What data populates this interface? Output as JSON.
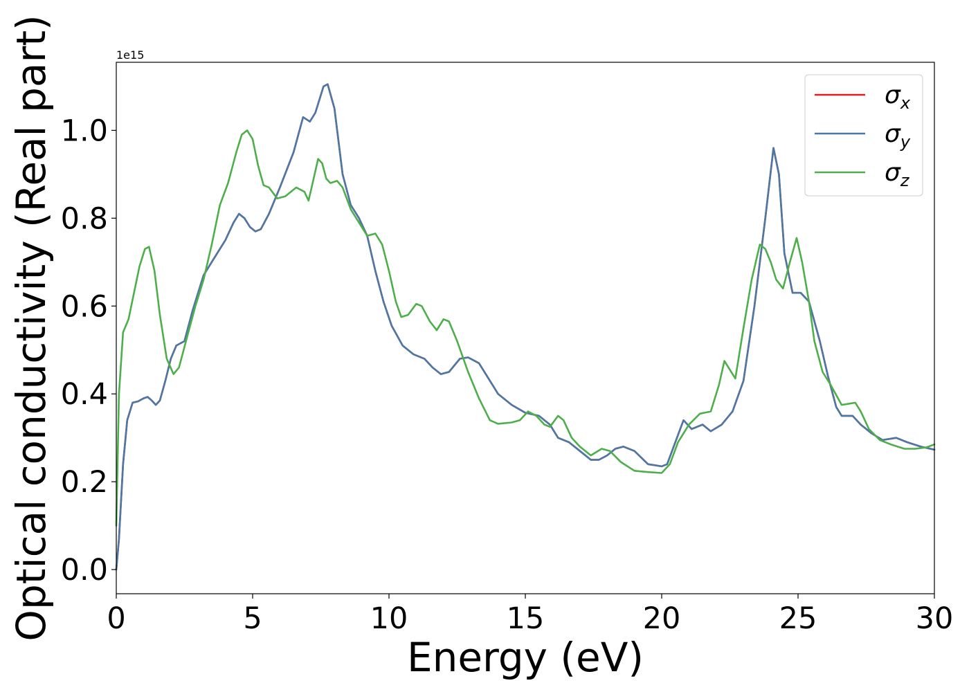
{
  "chart_data": {
    "type": "line",
    "xlabel": "Energy (eV)",
    "ylabel": "Optical conductivity (Real part)",
    "offset_text": "1e15",
    "xlim": [
      0,
      30
    ],
    "ylim": [
      -0.055,
      1.155
    ],
    "x_ticks": [
      "0",
      "5",
      "10",
      "15",
      "20",
      "25",
      "30"
    ],
    "y_ticks": [
      "0.0",
      "0.2",
      "0.4",
      "0.6",
      "0.8",
      "1.0"
    ],
    "legend_position": "top-right",
    "grid": false,
    "series": [
      {
        "name": "σx",
        "legend_base": "σ",
        "legend_sub": "x",
        "color": "#e41a1c",
        "points": [
          [
            0,
            0
          ],
          [
            0.1,
            0.07
          ],
          [
            0.25,
            0.24
          ],
          [
            0.4,
            0.34
          ],
          [
            0.6,
            0.38
          ],
          [
            0.8,
            0.383
          ],
          [
            1.0,
            0.39
          ],
          [
            1.15,
            0.393
          ],
          [
            1.3,
            0.385
          ],
          [
            1.45,
            0.375
          ],
          [
            1.6,
            0.385
          ],
          [
            1.8,
            0.43
          ],
          [
            2.0,
            0.48
          ],
          [
            2.2,
            0.51
          ],
          [
            2.5,
            0.52
          ],
          [
            2.8,
            0.59
          ],
          [
            3.2,
            0.67
          ],
          [
            3.6,
            0.71
          ],
          [
            4.0,
            0.75
          ],
          [
            4.3,
            0.79
          ],
          [
            4.5,
            0.81
          ],
          [
            4.7,
            0.8
          ],
          [
            4.9,
            0.78
          ],
          [
            5.1,
            0.77
          ],
          [
            5.3,
            0.775
          ],
          [
            5.6,
            0.81
          ],
          [
            6.0,
            0.87
          ],
          [
            6.5,
            0.95
          ],
          [
            6.85,
            1.03
          ],
          [
            7.1,
            1.02
          ],
          [
            7.3,
            1.04
          ],
          [
            7.6,
            1.1
          ],
          [
            7.75,
            1.105
          ],
          [
            8.0,
            1.05
          ],
          [
            8.3,
            0.9
          ],
          [
            8.6,
            0.83
          ],
          [
            8.9,
            0.8
          ],
          [
            9.2,
            0.76
          ],
          [
            9.5,
            0.68
          ],
          [
            9.8,
            0.61
          ],
          [
            10.1,
            0.555
          ],
          [
            10.5,
            0.51
          ],
          [
            10.9,
            0.49
          ],
          [
            11.3,
            0.48
          ],
          [
            11.6,
            0.46
          ],
          [
            11.9,
            0.445
          ],
          [
            12.2,
            0.45
          ],
          [
            12.6,
            0.48
          ],
          [
            12.9,
            0.483
          ],
          [
            13.3,
            0.47
          ],
          [
            13.7,
            0.43
          ],
          [
            14.0,
            0.4
          ],
          [
            14.5,
            0.375
          ],
          [
            15.0,
            0.357
          ],
          [
            15.5,
            0.35
          ],
          [
            15.9,
            0.33
          ],
          [
            16.2,
            0.3
          ],
          [
            16.6,
            0.29
          ],
          [
            17.0,
            0.27
          ],
          [
            17.4,
            0.25
          ],
          [
            17.7,
            0.25
          ],
          [
            18.0,
            0.26
          ],
          [
            18.3,
            0.275
          ],
          [
            18.6,
            0.28
          ],
          [
            19.0,
            0.27
          ],
          [
            19.5,
            0.24
          ],
          [
            20.0,
            0.235
          ],
          [
            20.2,
            0.24
          ],
          [
            20.5,
            0.29
          ],
          [
            20.8,
            0.34
          ],
          [
            21.1,
            0.32
          ],
          [
            21.5,
            0.33
          ],
          [
            21.8,
            0.315
          ],
          [
            22.2,
            0.33
          ],
          [
            22.6,
            0.36
          ],
          [
            23.0,
            0.43
          ],
          [
            23.4,
            0.6
          ],
          [
            23.8,
            0.8
          ],
          [
            24.1,
            0.96
          ],
          [
            24.3,
            0.9
          ],
          [
            24.5,
            0.72
          ],
          [
            24.8,
            0.63
          ],
          [
            25.1,
            0.63
          ],
          [
            25.4,
            0.61
          ],
          [
            25.8,
            0.52
          ],
          [
            26.1,
            0.44
          ],
          [
            26.4,
            0.37
          ],
          [
            26.6,
            0.35
          ],
          [
            27.0,
            0.35
          ],
          [
            27.3,
            0.33
          ],
          [
            27.7,
            0.31
          ],
          [
            28.1,
            0.295
          ],
          [
            28.6,
            0.3
          ],
          [
            29.0,
            0.29
          ],
          [
            29.5,
            0.28
          ],
          [
            30.0,
            0.273
          ]
        ]
      },
      {
        "name": "σy",
        "legend_base": "σ",
        "legend_sub": "y",
        "color": "#4a79a8",
        "points": [
          [
            0,
            0
          ],
          [
            0.1,
            0.07
          ],
          [
            0.25,
            0.24
          ],
          [
            0.4,
            0.34
          ],
          [
            0.6,
            0.38
          ],
          [
            0.8,
            0.383
          ],
          [
            1.0,
            0.39
          ],
          [
            1.15,
            0.393
          ],
          [
            1.3,
            0.385
          ],
          [
            1.45,
            0.375
          ],
          [
            1.6,
            0.385
          ],
          [
            1.8,
            0.43
          ],
          [
            2.0,
            0.48
          ],
          [
            2.2,
            0.51
          ],
          [
            2.5,
            0.52
          ],
          [
            2.8,
            0.59
          ],
          [
            3.2,
            0.67
          ],
          [
            3.6,
            0.71
          ],
          [
            4.0,
            0.75
          ],
          [
            4.3,
            0.79
          ],
          [
            4.5,
            0.81
          ],
          [
            4.7,
            0.8
          ],
          [
            4.9,
            0.78
          ],
          [
            5.1,
            0.77
          ],
          [
            5.3,
            0.775
          ],
          [
            5.6,
            0.81
          ],
          [
            6.0,
            0.87
          ],
          [
            6.5,
            0.95
          ],
          [
            6.85,
            1.03
          ],
          [
            7.1,
            1.02
          ],
          [
            7.3,
            1.04
          ],
          [
            7.6,
            1.1
          ],
          [
            7.75,
            1.105
          ],
          [
            8.0,
            1.05
          ],
          [
            8.3,
            0.9
          ],
          [
            8.6,
            0.83
          ],
          [
            8.9,
            0.8
          ],
          [
            9.2,
            0.76
          ],
          [
            9.5,
            0.68
          ],
          [
            9.8,
            0.61
          ],
          [
            10.1,
            0.555
          ],
          [
            10.5,
            0.51
          ],
          [
            10.9,
            0.49
          ],
          [
            11.3,
            0.48
          ],
          [
            11.6,
            0.46
          ],
          [
            11.9,
            0.445
          ],
          [
            12.2,
            0.45
          ],
          [
            12.6,
            0.48
          ],
          [
            12.9,
            0.483
          ],
          [
            13.3,
            0.47
          ],
          [
            13.7,
            0.43
          ],
          [
            14.0,
            0.4
          ],
          [
            14.5,
            0.375
          ],
          [
            15.0,
            0.357
          ],
          [
            15.5,
            0.35
          ],
          [
            15.9,
            0.33
          ],
          [
            16.2,
            0.3
          ],
          [
            16.6,
            0.29
          ],
          [
            17.0,
            0.27
          ],
          [
            17.4,
            0.25
          ],
          [
            17.7,
            0.25
          ],
          [
            18.0,
            0.26
          ],
          [
            18.3,
            0.275
          ],
          [
            18.6,
            0.28
          ],
          [
            19.0,
            0.27
          ],
          [
            19.5,
            0.24
          ],
          [
            20.0,
            0.235
          ],
          [
            20.2,
            0.24
          ],
          [
            20.5,
            0.29
          ],
          [
            20.8,
            0.34
          ],
          [
            21.1,
            0.32
          ],
          [
            21.5,
            0.33
          ],
          [
            21.8,
            0.315
          ],
          [
            22.2,
            0.33
          ],
          [
            22.6,
            0.36
          ],
          [
            23.0,
            0.43
          ],
          [
            23.4,
            0.6
          ],
          [
            23.8,
            0.8
          ],
          [
            24.1,
            0.96
          ],
          [
            24.3,
            0.9
          ],
          [
            24.5,
            0.72
          ],
          [
            24.8,
            0.63
          ],
          [
            25.1,
            0.63
          ],
          [
            25.4,
            0.61
          ],
          [
            25.8,
            0.52
          ],
          [
            26.1,
            0.44
          ],
          [
            26.4,
            0.37
          ],
          [
            26.6,
            0.35
          ],
          [
            27.0,
            0.35
          ],
          [
            27.3,
            0.33
          ],
          [
            27.7,
            0.31
          ],
          [
            28.1,
            0.295
          ],
          [
            28.6,
            0.3
          ],
          [
            29.0,
            0.29
          ],
          [
            29.5,
            0.28
          ],
          [
            30.0,
            0.273
          ]
        ]
      },
      {
        "name": "σz",
        "legend_base": "σ",
        "legend_sub": "z",
        "color": "#4daf4a",
        "points": [
          [
            0,
            0.1
          ],
          [
            0.1,
            0.4
          ],
          [
            0.25,
            0.54
          ],
          [
            0.45,
            0.57
          ],
          [
            0.65,
            0.63
          ],
          [
            0.85,
            0.69
          ],
          [
            1.05,
            0.73
          ],
          [
            1.2,
            0.735
          ],
          [
            1.4,
            0.68
          ],
          [
            1.6,
            0.58
          ],
          [
            1.85,
            0.48
          ],
          [
            2.1,
            0.445
          ],
          [
            2.3,
            0.46
          ],
          [
            2.6,
            0.53
          ],
          [
            2.9,
            0.6
          ],
          [
            3.2,
            0.66
          ],
          [
            3.5,
            0.74
          ],
          [
            3.8,
            0.83
          ],
          [
            4.1,
            0.88
          ],
          [
            4.4,
            0.95
          ],
          [
            4.6,
            0.99
          ],
          [
            4.8,
            1.0
          ],
          [
            5.0,
            0.98
          ],
          [
            5.2,
            0.92
          ],
          [
            5.4,
            0.875
          ],
          [
            5.6,
            0.87
          ],
          [
            5.9,
            0.845
          ],
          [
            6.2,
            0.85
          ],
          [
            6.6,
            0.87
          ],
          [
            6.9,
            0.86
          ],
          [
            7.05,
            0.84
          ],
          [
            7.2,
            0.88
          ],
          [
            7.4,
            0.935
          ],
          [
            7.55,
            0.925
          ],
          [
            7.7,
            0.89
          ],
          [
            7.85,
            0.88
          ],
          [
            8.1,
            0.885
          ],
          [
            8.3,
            0.87
          ],
          [
            8.6,
            0.82
          ],
          [
            8.9,
            0.79
          ],
          [
            9.2,
            0.76
          ],
          [
            9.5,
            0.765
          ],
          [
            9.75,
            0.74
          ],
          [
            10.0,
            0.68
          ],
          [
            10.25,
            0.61
          ],
          [
            10.45,
            0.575
          ],
          [
            10.7,
            0.58
          ],
          [
            11.0,
            0.605
          ],
          [
            11.2,
            0.6
          ],
          [
            11.5,
            0.565
          ],
          [
            11.75,
            0.545
          ],
          [
            12.0,
            0.57
          ],
          [
            12.2,
            0.565
          ],
          [
            12.5,
            0.52
          ],
          [
            12.9,
            0.45
          ],
          [
            13.3,
            0.39
          ],
          [
            13.7,
            0.34
          ],
          [
            14.0,
            0.332
          ],
          [
            14.5,
            0.335
          ],
          [
            14.8,
            0.34
          ],
          [
            15.1,
            0.36
          ],
          [
            15.4,
            0.35
          ],
          [
            15.7,
            0.33
          ],
          [
            15.9,
            0.325
          ],
          [
            16.2,
            0.35
          ],
          [
            16.4,
            0.34
          ],
          [
            16.7,
            0.3
          ],
          [
            17.0,
            0.28
          ],
          [
            17.4,
            0.26
          ],
          [
            17.8,
            0.275
          ],
          [
            18.1,
            0.27
          ],
          [
            18.5,
            0.245
          ],
          [
            19.0,
            0.225
          ],
          [
            19.5,
            0.222
          ],
          [
            20.0,
            0.22
          ],
          [
            20.3,
            0.24
          ],
          [
            20.6,
            0.29
          ],
          [
            21.0,
            0.33
          ],
          [
            21.4,
            0.355
          ],
          [
            21.8,
            0.36
          ],
          [
            22.1,
            0.42
          ],
          [
            22.3,
            0.475
          ],
          [
            22.5,
            0.455
          ],
          [
            22.7,
            0.435
          ],
          [
            23.0,
            0.55
          ],
          [
            23.3,
            0.66
          ],
          [
            23.6,
            0.74
          ],
          [
            23.8,
            0.73
          ],
          [
            24.0,
            0.7
          ],
          [
            24.2,
            0.66
          ],
          [
            24.45,
            0.64
          ],
          [
            24.7,
            0.7
          ],
          [
            24.95,
            0.755
          ],
          [
            25.15,
            0.7
          ],
          [
            25.4,
            0.61
          ],
          [
            25.6,
            0.52
          ],
          [
            25.9,
            0.45
          ],
          [
            26.2,
            0.42
          ],
          [
            26.6,
            0.375
          ],
          [
            26.9,
            0.378
          ],
          [
            27.1,
            0.38
          ],
          [
            27.3,
            0.36
          ],
          [
            27.6,
            0.32
          ],
          [
            28.0,
            0.295
          ],
          [
            28.4,
            0.285
          ],
          [
            28.9,
            0.275
          ],
          [
            29.3,
            0.275
          ],
          [
            29.7,
            0.278
          ],
          [
            30.0,
            0.285
          ]
        ]
      }
    ]
  }
}
